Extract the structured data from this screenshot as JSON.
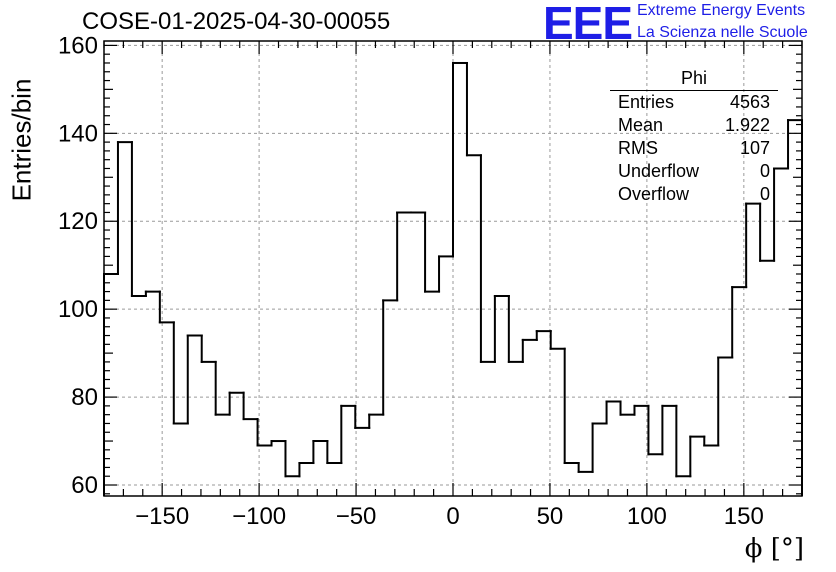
{
  "header": {
    "title": "COSE-01-2025-04-30-00055"
  },
  "logo": {
    "mark": "EEE",
    "line1": "Extreme Energy Events",
    "line2": "La Scienza nelle Scuole",
    "color": "#1e1ee6"
  },
  "stats_box": {
    "title": "Phi",
    "rows": [
      {
        "label": "Entries",
        "value": "4563"
      },
      {
        "label": "Mean",
        "value": "1.922"
      },
      {
        "label": "RMS",
        "value": "107"
      },
      {
        "label": "Underflow",
        "value": "0"
      },
      {
        "label": "Overflow",
        "value": "0"
      }
    ]
  },
  "chart_data": {
    "type": "bar",
    "style": "step-histogram",
    "title": "COSE-01-2025-04-30-00055",
    "xlabel": "ϕ [°]",
    "ylabel": "Entries/bin",
    "xlim": [
      -180,
      180
    ],
    "ylim": [
      57.5,
      161
    ],
    "xticks": [
      -150,
      -100,
      -50,
      0,
      50,
      100,
      150
    ],
    "xtick_labels": [
      "−150",
      "−100",
      "−50",
      "0",
      "50",
      "100",
      "150"
    ],
    "yticks": [
      60,
      80,
      100,
      120,
      140,
      160
    ],
    "bin_width": 7.2,
    "grid": true,
    "values": [
      108,
      138,
      103,
      104,
      97,
      74,
      94,
      88,
      76,
      81,
      75,
      69,
      70,
      62,
      65,
      70,
      65,
      78,
      73,
      76,
      102,
      122,
      122,
      104,
      112,
      156,
      135,
      88,
      103,
      88,
      93,
      95,
      91,
      65,
      63,
      74,
      79,
      76,
      78,
      67,
      78,
      62,
      71,
      69,
      89,
      105,
      124,
      111,
      132,
      143
    ]
  }
}
